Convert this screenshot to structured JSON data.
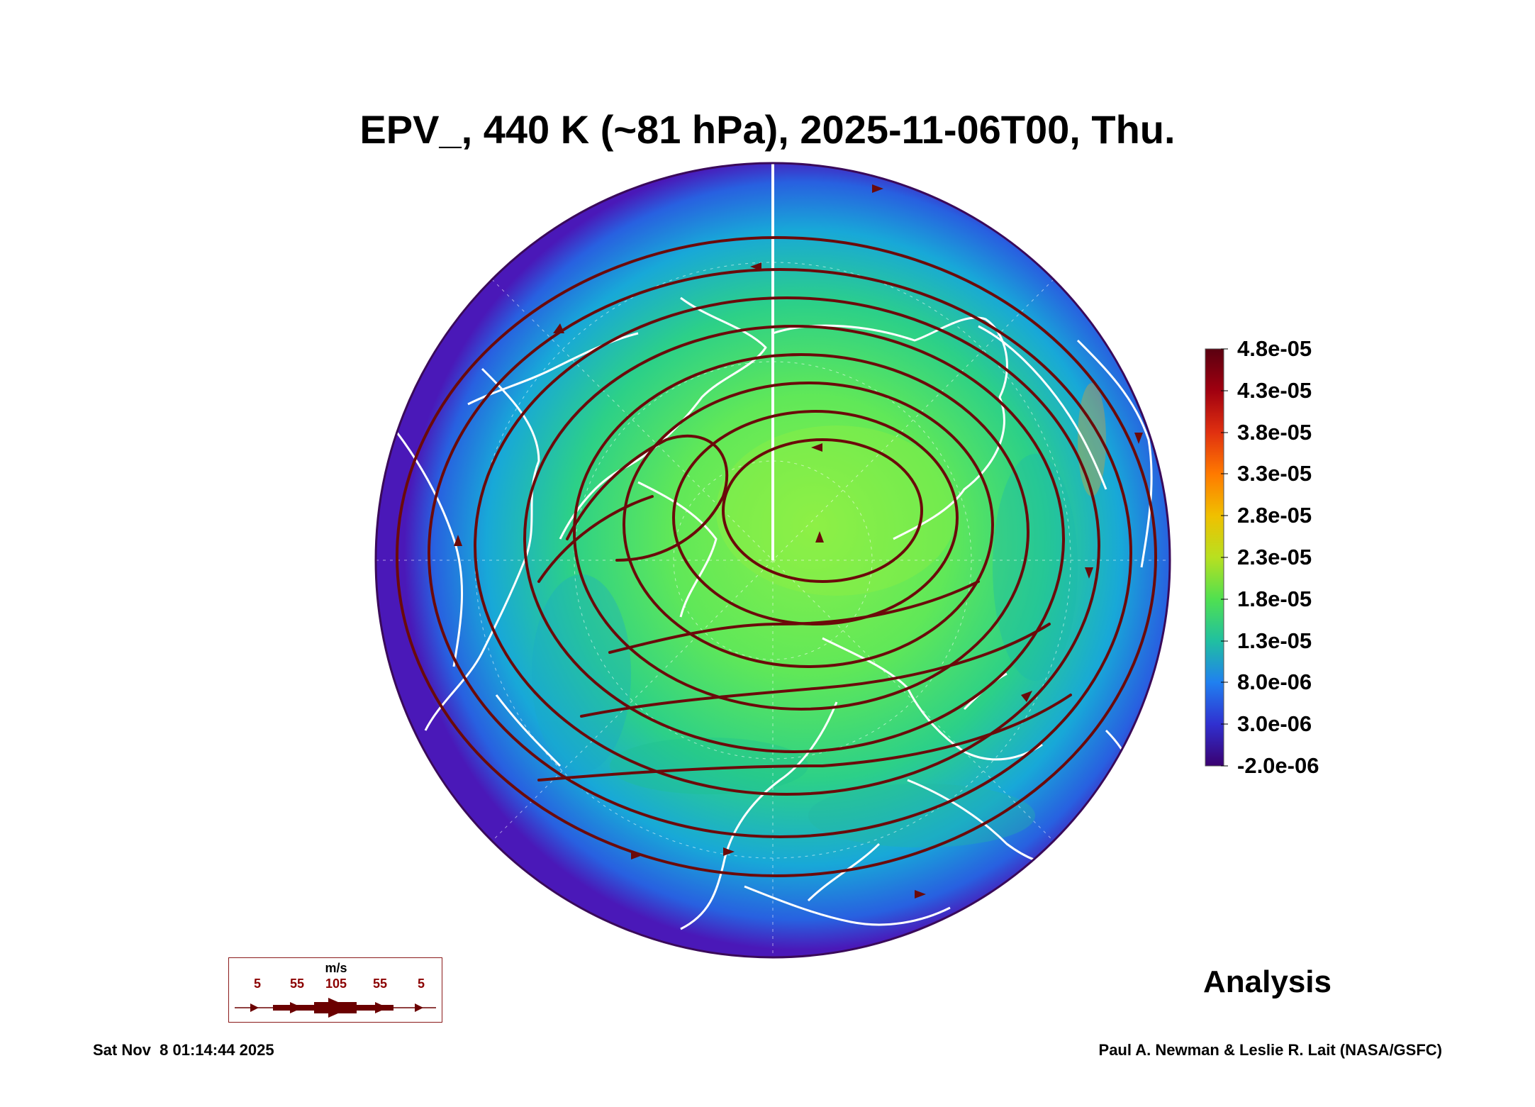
{
  "title": "EPV_, 440 K (~81 hPa), 2025-11-06T00, Thu.",
  "colorbar": {
    "labels": [
      "4.8e-05",
      "4.3e-05",
      "3.8e-05",
      "3.3e-05",
      "2.8e-05",
      "2.3e-05",
      "1.8e-05",
      "1.3e-05",
      "8.0e-06",
      "3.0e-06",
      "-2.0e-06"
    ],
    "colors": [
      "#5a0010",
      "#a00010",
      "#e03010",
      "#ff7a00",
      "#f0c000",
      "#b8e020",
      "#50e050",
      "#20c0a0",
      "#2080f0",
      "#3030d0",
      "#3a0070"
    ]
  },
  "legend": {
    "unit": "m/s",
    "ticks": [
      "5",
      "55",
      "105",
      "55",
      "5"
    ],
    "arrow_color": "#6b0000"
  },
  "map": {
    "projection": "north polar stereographic",
    "field_colors": {
      "core": "#7cf05a",
      "mid": "#28d080",
      "outer": "#1aa0e0",
      "edge": "#4a20c0"
    },
    "streamline_color": "#6b0a0a",
    "coastline_color": "#ffffff"
  },
  "stamp": "Analysis",
  "footer": {
    "date": "Sat Nov  8 01:14:44 2025",
    "credit": "Paul A. Newman & Leslie R. Lait (NASA/GSFC)"
  }
}
